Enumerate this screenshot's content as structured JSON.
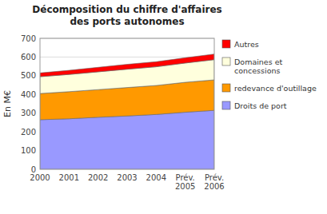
{
  "chart_data": {
    "type": "area",
    "stacked": true,
    "title": "Décomposition du chiffre d'affaires\ndes ports autonomes",
    "y_label": "En M€",
    "categories": [
      "2000",
      "2001",
      "2002",
      "2003",
      "2004",
      "Prév.\n2005",
      "Prév.\n2006"
    ],
    "series": [
      {
        "name": "Droits de port",
        "color": "#9999FF",
        "values": [
          265,
          270,
          278,
          285,
          293,
          305,
          315
        ]
      },
      {
        "name": "redevance d'outillage",
        "color": "#FF9900",
        "values": [
          140,
          145,
          148,
          152,
          155,
          160,
          163
        ]
      },
      {
        "name": "Domaines et\nconcessions",
        "color": "#FFFFDD",
        "values": [
          90,
          92,
          95,
          98,
          100,
          103,
          108
        ]
      },
      {
        "name": "Autres",
        "color": "#FF0000",
        "values": [
          20,
          22,
          24,
          26,
          27,
          28,
          30
        ]
      }
    ],
    "ylim": [
      0,
      700
    ],
    "yticks": [
      0,
      100,
      200,
      300,
      400,
      500,
      600,
      700
    ],
    "grid": true,
    "legend": "right"
  }
}
